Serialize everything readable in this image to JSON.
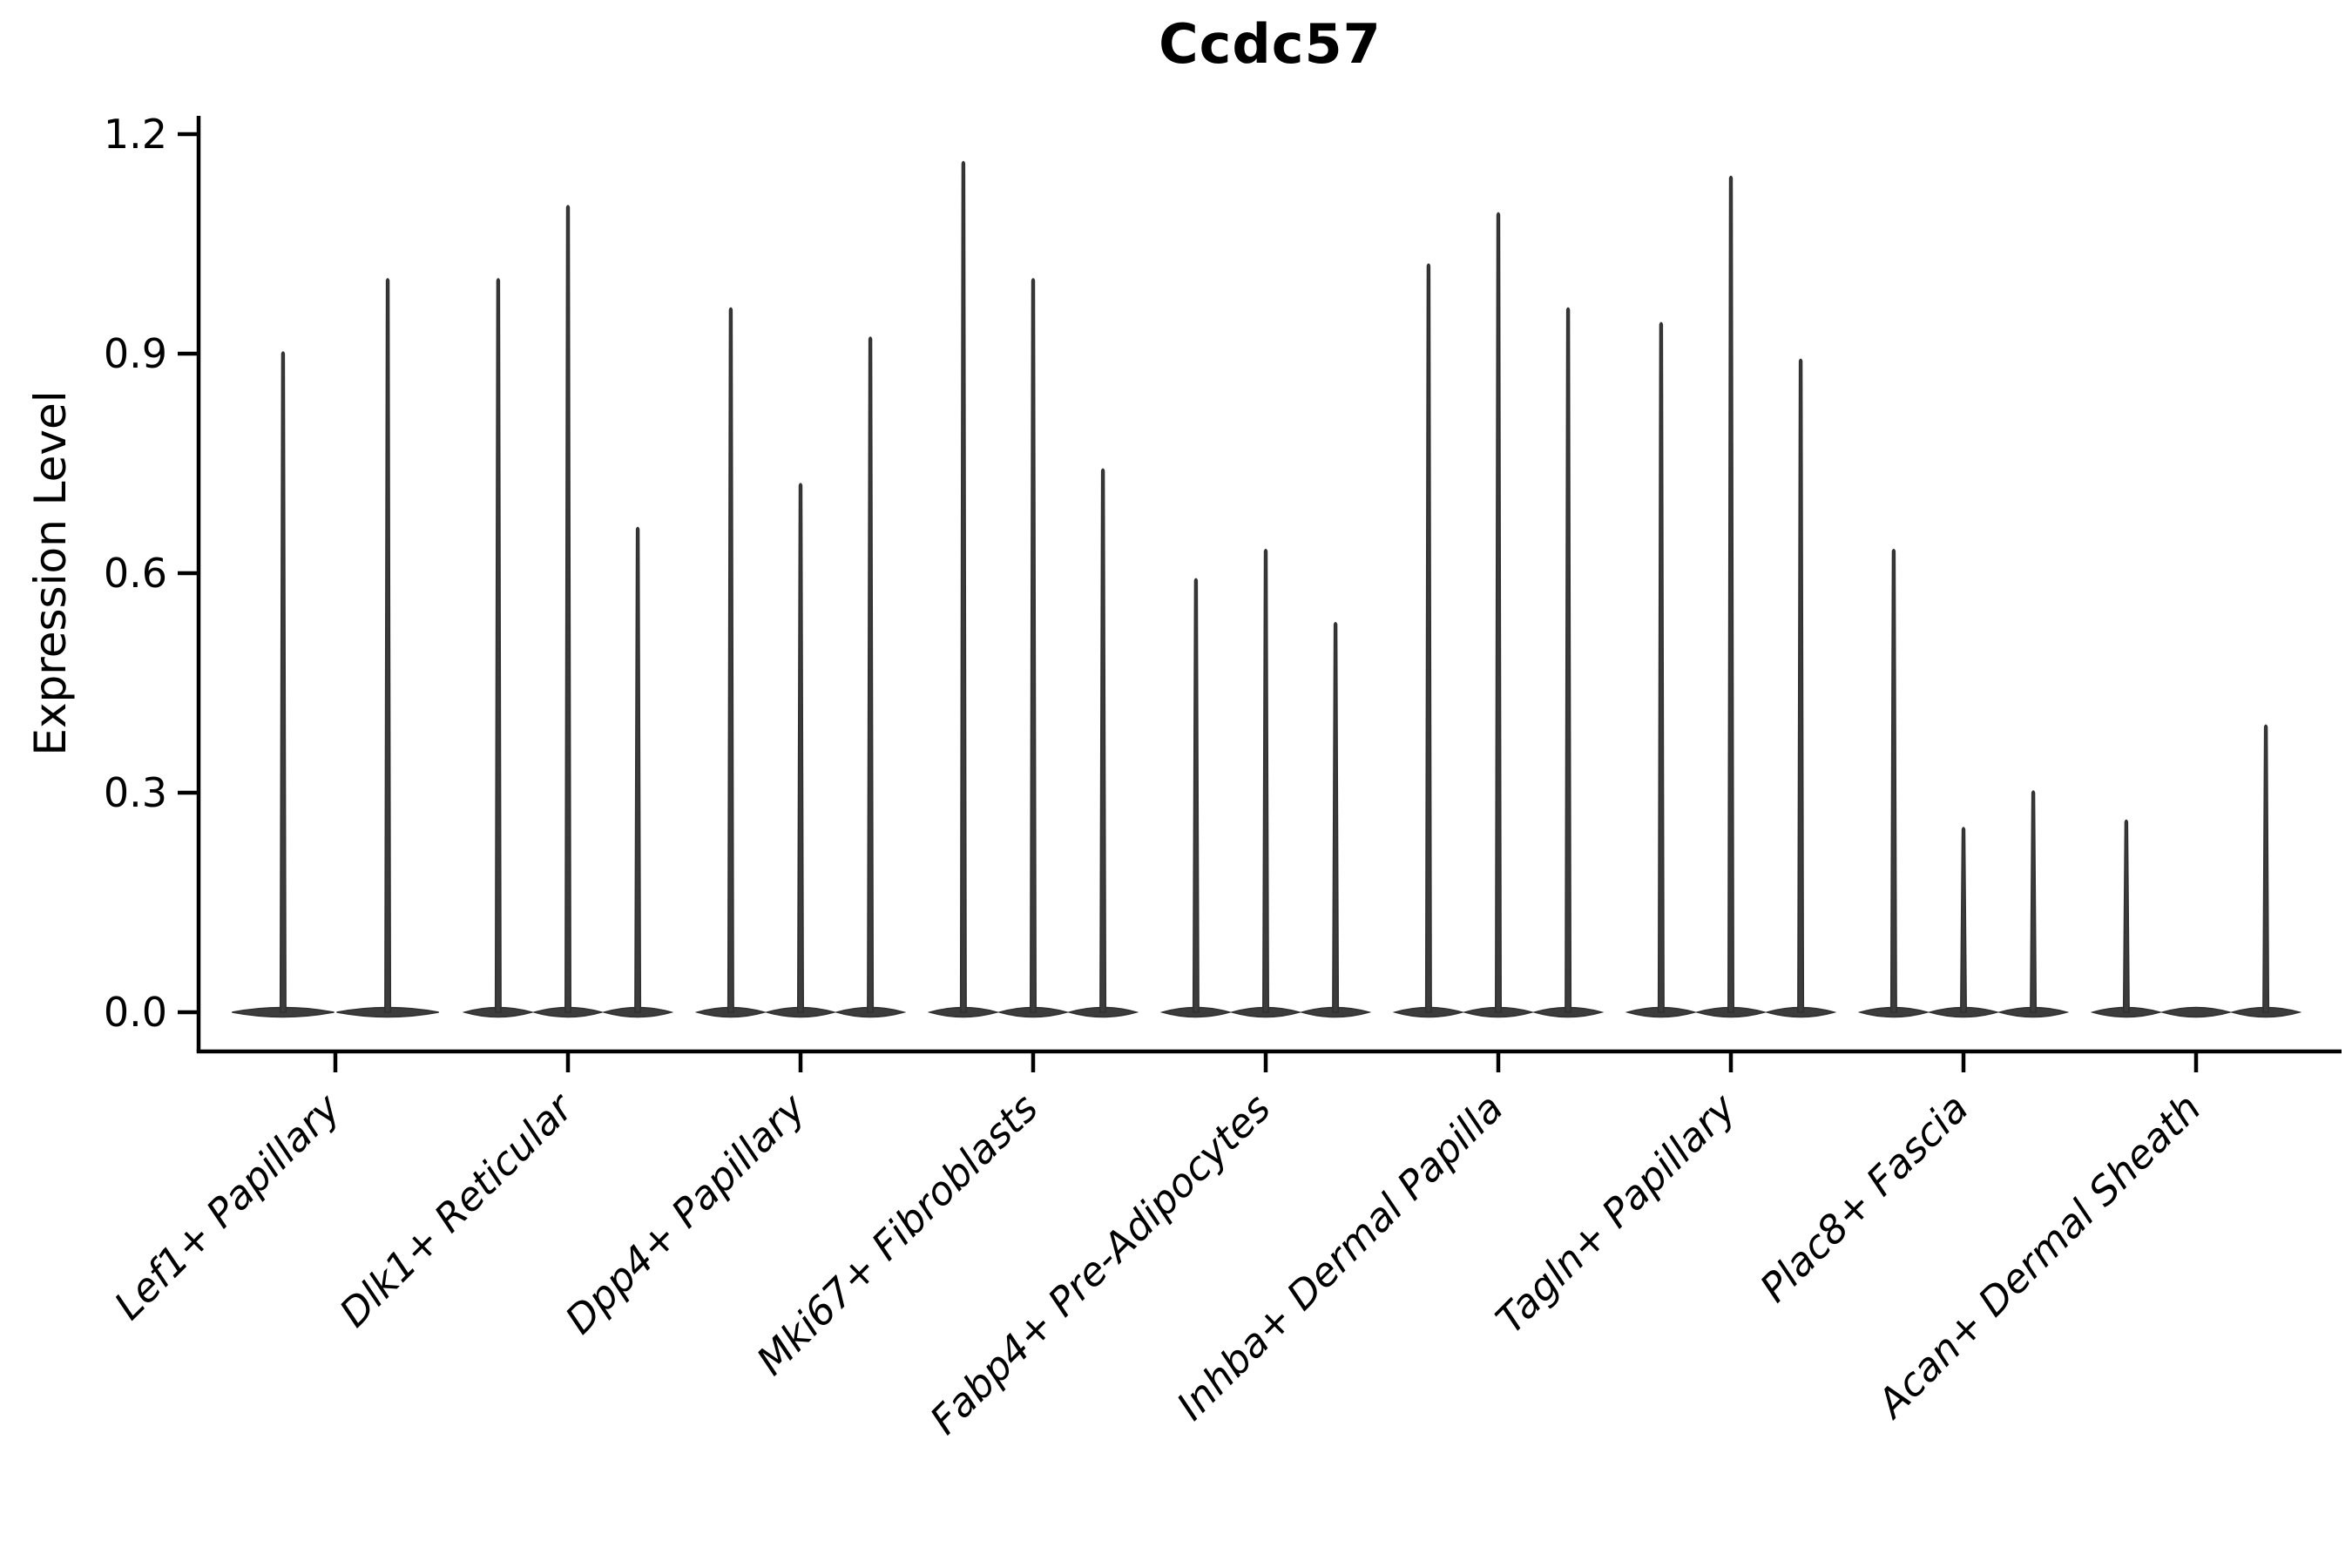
{
  "chart_data": {
    "type": "violin",
    "title": "Ccdc57",
    "ylabel": "Expression Level",
    "xlabel": "",
    "ylim": [
      0,
      1.2
    ],
    "yticks": [
      "0.0",
      "0.3",
      "0.6",
      "0.9",
      "1.2"
    ],
    "grid": false,
    "legend": null,
    "violin_fill": "#3c3c3c",
    "violin_stroke": "#303030",
    "axis_color": "#000000",
    "text_color": "#000000",
    "categories": [
      {
        "label": "Lef1+ Papillary",
        "violin_peaks": [
          0.9,
          1.0
        ]
      },
      {
        "label": "Dlk1+ Reticular",
        "violin_peaks": [
          1.0,
          1.1,
          0.66
        ]
      },
      {
        "label": "Dpp4+ Papillary",
        "violin_peaks": [
          0.96,
          0.72,
          0.92
        ]
      },
      {
        "label": "Mki67+ Fibroblasts",
        "violin_peaks": [
          1.16,
          1.0,
          0.74
        ]
      },
      {
        "label": "Fabp4+ Pre-Adipocytes",
        "violin_peaks": [
          0.59,
          0.63,
          0.53
        ]
      },
      {
        "label": "Inhba+ Dermal Papilla",
        "violin_peaks": [
          1.02,
          1.09,
          0.96
        ]
      },
      {
        "label": "Tagln+ Papillary",
        "violin_peaks": [
          0.94,
          1.14,
          0.89
        ]
      },
      {
        "label": "Plac8+ Fascia",
        "violin_peaks": [
          0.63,
          0.25,
          0.3
        ]
      },
      {
        "label": "Acan+ Dermal Sheath",
        "violin_peaks": [
          0.26,
          0.0,
          0.39
        ]
      }
    ]
  }
}
